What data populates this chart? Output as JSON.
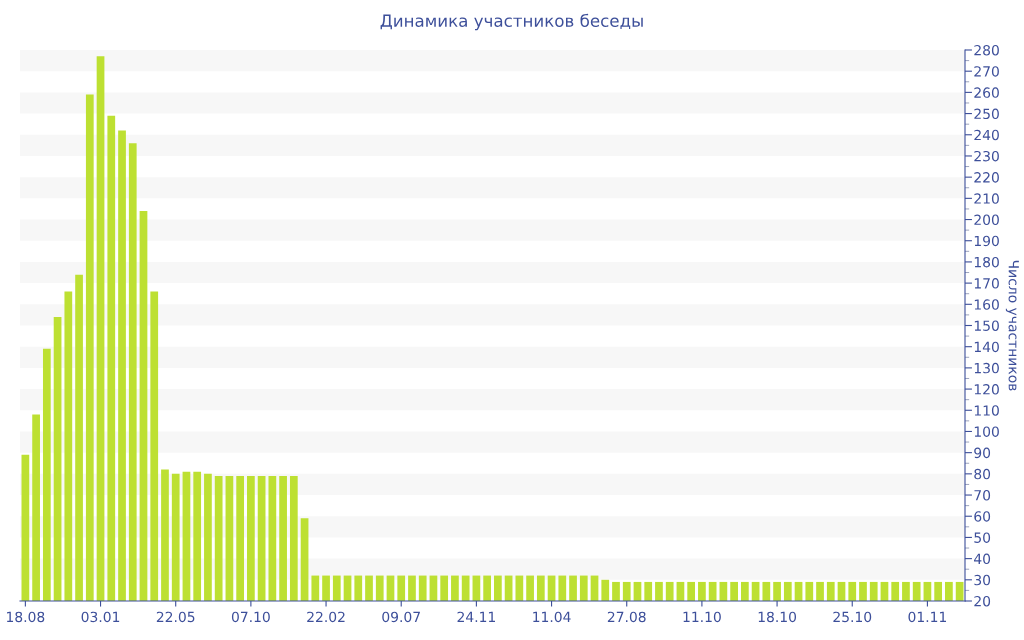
{
  "chart_data": {
    "type": "bar",
    "title": "Динамика участников беседы",
    "ylabel": "Число участников",
    "categories": [
      "18.08",
      null,
      null,
      null,
      null,
      null,
      null,
      "03.01",
      null,
      null,
      null,
      null,
      null,
      null,
      "22.05",
      null,
      null,
      null,
      null,
      null,
      null,
      "07.10",
      null,
      null,
      null,
      null,
      null,
      null,
      "22.02",
      null,
      null,
      null,
      null,
      null,
      null,
      "09.07",
      null,
      null,
      null,
      null,
      null,
      null,
      "24.11",
      null,
      null,
      null,
      null,
      null,
      null,
      "11.04",
      null,
      null,
      null,
      null,
      null,
      null,
      "27.08",
      null,
      null,
      null,
      null,
      null,
      null,
      "11.10",
      null,
      null,
      null,
      null,
      null,
      null,
      "18.10",
      null,
      null,
      null,
      null,
      null,
      null,
      "25.10",
      null,
      null,
      null,
      null,
      null,
      null,
      "01.11",
      null,
      null,
      null
    ],
    "values": [
      89,
      108,
      139,
      154,
      166,
      174,
      259,
      277,
      249,
      242,
      236,
      204,
      166,
      82,
      80,
      81,
      81,
      80,
      79,
      79,
      79,
      79,
      79,
      79,
      79,
      79,
      59,
      32,
      32,
      32,
      32,
      32,
      32,
      32,
      32,
      32,
      32,
      32,
      32,
      32,
      32,
      32,
      32,
      32,
      32,
      32,
      32,
      32,
      32,
      32,
      32,
      32,
      32,
      32,
      30,
      29,
      29,
      29,
      29,
      29,
      29,
      29,
      29,
      29,
      29,
      29,
      29,
      29,
      29,
      29,
      29,
      29,
      29,
      29,
      29,
      29,
      29,
      29,
      29,
      29,
      29,
      29,
      29,
      29,
      29,
      29,
      29,
      29
    ],
    "color": "#bde032",
    "ylim": [
      20,
      280
    ],
    "yticks": [
      20,
      30,
      40,
      50,
      60,
      70,
      80,
      90,
      100,
      110,
      120,
      130,
      140,
      150,
      160,
      170,
      180,
      190,
      200,
      210,
      220,
      230,
      240,
      250,
      260,
      270,
      280
    ],
    "bands": [
      {
        "axis": "y",
        "from": 30,
        "to": 40,
        "color": "#f7f7f7"
      },
      {
        "axis": "y",
        "from": 50,
        "to": 60,
        "color": "#f7f7f7"
      },
      {
        "axis": "y",
        "from": 70,
        "to": 80,
        "color": "#f7f7f7"
      },
      {
        "axis": "y",
        "from": 90,
        "to": 100,
        "color": "#f7f7f7"
      },
      {
        "axis": "y",
        "from": 110,
        "to": 120,
        "color": "#f7f7f7"
      },
      {
        "axis": "y",
        "from": 130,
        "to": 140,
        "color": "#f7f7f7"
      },
      {
        "axis": "y",
        "from": 150,
        "to": 160,
        "color": "#f7f7f7"
      },
      {
        "axis": "y",
        "from": 170,
        "to": 180,
        "color": "#f7f7f7"
      },
      {
        "axis": "y",
        "from": 190,
        "to": 200,
        "color": "#f7f7f7"
      },
      {
        "axis": "y",
        "from": 210,
        "to": 220,
        "color": "#f7f7f7"
      },
      {
        "axis": "y",
        "from": 230,
        "to": 240,
        "color": "#f7f7f7"
      },
      {
        "axis": "y",
        "from": 250,
        "to": 260,
        "color": "#f7f7f7"
      },
      {
        "axis": "y",
        "from": 270,
        "to": 280,
        "color": "#f7f7f7"
      }
    ],
    "grid": false
  }
}
